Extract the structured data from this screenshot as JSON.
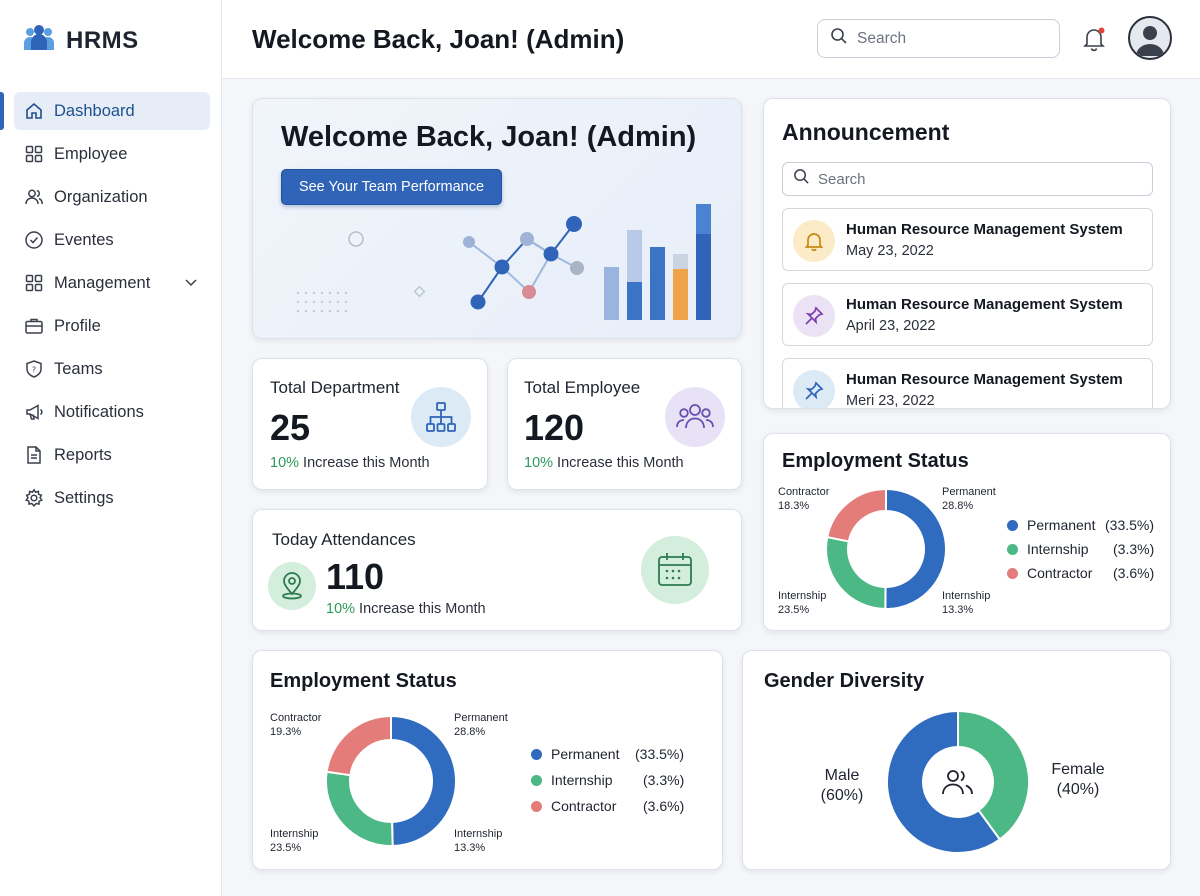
{
  "app": {
    "title": "HRMS"
  },
  "header": {
    "title": "Welcome Back, Joan! (Admin)",
    "search_placeholder": "Search"
  },
  "sidebar": {
    "items": [
      {
        "label": "Dashboard",
        "icon": "home-icon",
        "active": true
      },
      {
        "label": "Employee",
        "icon": "grid-icon"
      },
      {
        "label": "Organization",
        "icon": "users-icon"
      },
      {
        "label": "Eventes",
        "icon": "check-circle-icon"
      },
      {
        "label": "Management",
        "icon": "grid-icon",
        "has_submenu": true
      },
      {
        "label": "Profile",
        "icon": "briefcase-icon"
      },
      {
        "label": "Teams",
        "icon": "shield-icon"
      },
      {
        "label": "Notifications",
        "icon": "megaphone-icon"
      },
      {
        "label": "Reports",
        "icon": "document-icon"
      },
      {
        "label": "Settings",
        "icon": "gear-icon"
      }
    ]
  },
  "hero": {
    "title": "Welcome Back, Joan! (Admin)",
    "button_label": "See Your Team Performance"
  },
  "stats": {
    "department": {
      "title": "Total Department",
      "value": "25",
      "change": "10%",
      "note": " Increase this Month",
      "icon": "org-chart-icon"
    },
    "employee": {
      "title": "Total Employee",
      "value": "120",
      "change": "10%",
      "note": " Increase this Month",
      "icon": "group-icon"
    },
    "attendance": {
      "title": "Today Attendances",
      "value": "110",
      "change": "10%",
      "note": " Increase this Month",
      "icon": "calendar-icon"
    }
  },
  "announcement": {
    "title": "Announcement",
    "search_placeholder": "Search",
    "items": [
      {
        "title": "Human Resource Management System",
        "date": "May 23, 2022",
        "icon": "bell-icon"
      },
      {
        "title": "Human Resource Management System",
        "date": "April 23, 2022",
        "icon": "pin-icon"
      },
      {
        "title": "Human Resource Management System",
        "date": "Meri 23, 2022",
        "icon": "pin-icon"
      }
    ]
  },
  "employment_status_top": {
    "title": "Employment Status",
    "labels": {
      "contractor": [
        "Contractor",
        "18.3%"
      ],
      "permanent": [
        "Permanent",
        "28.8%"
      ],
      "internship": [
        "Internship",
        "23.5%"
      ],
      "internship2": [
        "Internship",
        "13.3%"
      ]
    },
    "legend": [
      {
        "name": "Permanent",
        "pct": "(33.5%)"
      },
      {
        "name": "Internship",
        "pct": "(3.3%)"
      },
      {
        "name": "Contractor",
        "pct": "(3.6%)"
      }
    ]
  },
  "employment_status_bottom": {
    "title": "Employment Status",
    "labels": {
      "contractor": [
        "Contractor",
        "19.3%"
      ],
      "permanent": [
        "Permanent",
        "28.8%"
      ],
      "internship": [
        "Internship",
        "23.5%"
      ],
      "internship2": [
        "Internship",
        "13.3%"
      ]
    },
    "legend": [
      {
        "name": "Permanent",
        "pct": "(33.5%)"
      },
      {
        "name": "Internship",
        "pct": "(3.3%)"
      },
      {
        "name": "Contractor",
        "pct": "(3.6%)"
      }
    ]
  },
  "gender_diversity": {
    "title": "Gender Diversity",
    "male": [
      "Male",
      "(60%)"
    ],
    "female": [
      "Female",
      "(40%)"
    ]
  },
  "colors": {
    "permanent": "#2f6bbf",
    "internship": "#4cb886",
    "contractor": "#e47c7a",
    "accent": "#2f64b8",
    "positive": "#2e9a5b"
  },
  "chart_data": [
    {
      "type": "pie",
      "title": "Employment Status",
      "donut": true,
      "slices": [
        {
          "name": "Permanent",
          "legend_value": 33.5
        },
        {
          "name": "Internship",
          "legend_value": 3.3
        },
        {
          "name": "Contractor",
          "legend_value": 3.6
        }
      ],
      "callouts": [
        {
          "name": "Contractor",
          "value": 18.3
        },
        {
          "name": "Permanent",
          "value": 28.8
        },
        {
          "name": "Internship",
          "value": 23.5
        },
        {
          "name": "Internship",
          "value": 13.3
        }
      ],
      "legend_position": "right"
    },
    {
      "type": "pie",
      "title": "Employment Status",
      "donut": true,
      "slices": [
        {
          "name": "Permanent",
          "legend_value": 33.5
        },
        {
          "name": "Internship",
          "legend_value": 3.3
        },
        {
          "name": "Contractor",
          "legend_value": 3.6
        }
      ],
      "callouts": [
        {
          "name": "Contractor",
          "value": 19.3
        },
        {
          "name": "Permanent",
          "value": 28.8
        },
        {
          "name": "Internship",
          "value": 23.5
        },
        {
          "name": "Internship",
          "value": 13.3
        }
      ],
      "legend_position": "right"
    },
    {
      "type": "pie",
      "title": "Gender Diversity",
      "donut": true,
      "slices": [
        {
          "name": "Male",
          "value": 60
        },
        {
          "name": "Female",
          "value": 40
        }
      ],
      "legend_position": "sides"
    }
  ]
}
